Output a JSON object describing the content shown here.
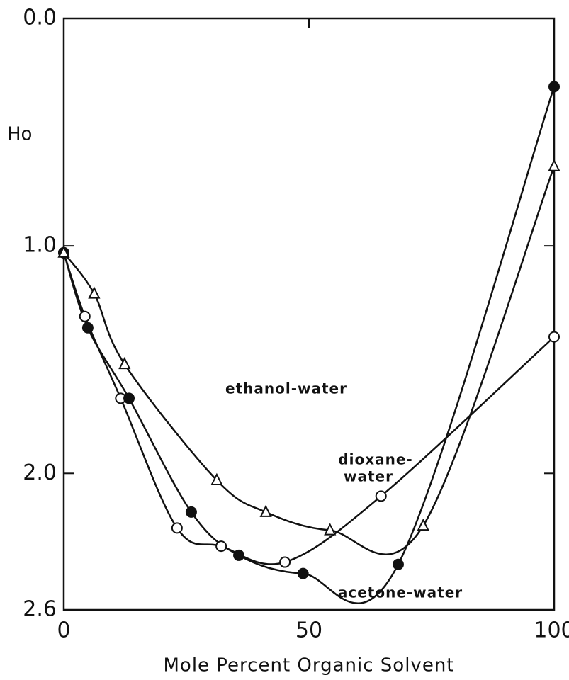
{
  "chart_data": {
    "type": "scatter",
    "xlabel": "Mole Percent Organic Solvent",
    "ylabel": "Ho",
    "xlim": [
      0,
      100
    ],
    "xticks": [
      0,
      50,
      100
    ],
    "ylim": [
      2.6,
      0
    ],
    "yticks": [
      {
        "value": 0,
        "label": "0.0"
      },
      {
        "value": 1,
        "label": "1.0"
      },
      {
        "value": 2,
        "label": "2.0"
      },
      {
        "value": 2.6,
        "label": "2.6"
      }
    ],
    "grid": false,
    "annotations": [
      "ethanol-water",
      "dioxane-",
      "water",
      "acetone-water"
    ],
    "series": [
      {
        "marker": "circle-open",
        "color": "#111",
        "x": [
          0,
          4.3,
          11.6,
          23.1,
          32.1,
          45.1,
          64.7,
          100
        ],
        "values": [
          1.03,
          1.31,
          1.67,
          2.24,
          2.32,
          2.39,
          2.1,
          1.4
        ]
      },
      {
        "marker": "circle-filled",
        "color": "#111",
        "x": [
          0,
          4.9,
          13.3,
          26,
          35.7,
          48.8,
          68.2,
          100
        ],
        "values": [
          1.03,
          1.36,
          1.67,
          2.17,
          2.36,
          2.44,
          2.4,
          0.3
        ]
      },
      {
        "marker": "triangle-open",
        "color": "#111",
        "x": [
          0,
          6.2,
          12.4,
          31.2,
          41.2,
          54.3,
          73.3,
          100
        ],
        "values": [
          1.03,
          1.21,
          1.52,
          2.03,
          2.17,
          2.25,
          2.23,
          0.65
        ]
      }
    ]
  }
}
